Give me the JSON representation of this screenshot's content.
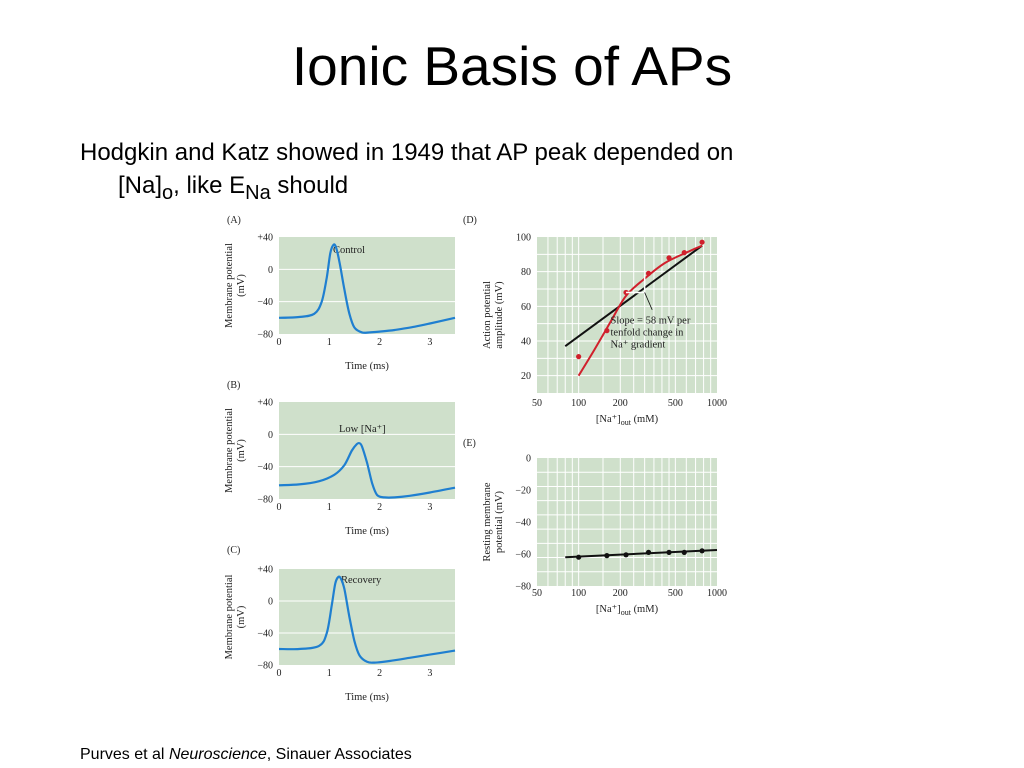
{
  "slide": {
    "title": "Ionic Basis of APs",
    "bullet": {
      "text_1": "Hodgkin and Katz showed in 1949 that AP peak depended on",
      "text_2": "[Na]",
      "sub_1": "o",
      "text_3": ", like E",
      "sub_2": "Na",
      "text_4": " should"
    },
    "citation": {
      "prefix": "Purves et al ",
      "book": "Neuroscience",
      "suffix": ", Sinauer Associates"
    }
  },
  "colors": {
    "panel_bg": "#cfe0cb",
    "grid": "#ffffff",
    "trace": "#1f7fd0",
    "fit_red": "#d0202c",
    "line_black": "#111111"
  },
  "chart_data": [
    {
      "panel": "(A)",
      "type": "line",
      "annotation": "Control",
      "xlabel": "Time (ms)",
      "ylabel_line1": "Membrane potential",
      "ylabel_line2": "(mV)",
      "xlim": [
        0,
        3.5
      ],
      "ylim": [
        -80,
        40
      ],
      "xticks": [
        0,
        1,
        2,
        3
      ],
      "yticks": [
        40,
        0,
        -40,
        -80
      ],
      "ytick_labels": [
        "+40",
        "0",
        "−40",
        "−80"
      ],
      "grid": true,
      "series": [
        {
          "x": [
            0,
            0.4,
            0.7,
            0.85,
            0.95,
            1.02,
            1.08,
            1.13,
            1.2,
            1.3,
            1.4,
            1.5,
            1.65,
            1.8,
            2.0,
            2.3,
            2.7,
            3.0,
            3.5
          ],
          "y": [
            -60,
            -59,
            -55,
            -40,
            -10,
            20,
            30,
            28,
            10,
            -25,
            -55,
            -72,
            -78,
            -78,
            -77,
            -75,
            -71,
            -67,
            -60
          ]
        }
      ]
    },
    {
      "panel": "(B)",
      "type": "line",
      "annotation": "Low [Na⁺]",
      "xlabel": "Time (ms)",
      "ylabel_line1": "Membrane potential",
      "ylabel_line2": "(mV)",
      "xlim": [
        0,
        3.5
      ],
      "ylim": [
        -80,
        40
      ],
      "xticks": [
        0,
        1,
        2,
        3
      ],
      "yticks": [
        40,
        0,
        -40,
        -80
      ],
      "ytick_labels": [
        "+40",
        "0",
        "−40",
        "−80"
      ],
      "grid": true,
      "series": [
        {
          "x": [
            0,
            0.4,
            0.8,
            1.1,
            1.3,
            1.45,
            1.55,
            1.6,
            1.65,
            1.75,
            1.85,
            1.95,
            2.1,
            2.3,
            2.6,
            3.0,
            3.5
          ],
          "y": [
            -63,
            -62,
            -58,
            -50,
            -38,
            -20,
            -12,
            -11,
            -15,
            -35,
            -60,
            -75,
            -78,
            -78,
            -76,
            -72,
            -66
          ]
        }
      ]
    },
    {
      "panel": "(C)",
      "type": "line",
      "annotation": "Recovery",
      "xlabel": "Time (ms)",
      "ylabel_line1": "Membrane potential",
      "ylabel_line2": "(mV)",
      "xlim": [
        0,
        3.5
      ],
      "ylim": [
        -80,
        40
      ],
      "xticks": [
        0,
        1,
        2,
        3
      ],
      "yticks": [
        40,
        0,
        -40,
        -80
      ],
      "ytick_labels": [
        "+40",
        "0",
        "−40",
        "−80"
      ],
      "grid": true,
      "series": [
        {
          "x": [
            0,
            0.4,
            0.8,
            0.95,
            1.05,
            1.12,
            1.18,
            1.23,
            1.3,
            1.4,
            1.5,
            1.6,
            1.75,
            1.9,
            2.2,
            2.6,
            3.0,
            3.5
          ],
          "y": [
            -60,
            -60,
            -56,
            -40,
            -5,
            22,
            30,
            28,
            15,
            -20,
            -50,
            -68,
            -76,
            -77,
            -75,
            -71,
            -67,
            -62
          ]
        }
      ]
    },
    {
      "panel": "(D)",
      "type": "scatter",
      "xscale": "log",
      "xlim": [
        50,
        1000
      ],
      "ylim": [
        10,
        100
      ],
      "xticks": [
        50,
        100,
        200,
        500,
        1000
      ],
      "yticks": [
        20,
        40,
        60,
        80,
        100
      ],
      "xlabel": "[Na⁺]",
      "xlabel_sub": "out",
      "xlabel_unit": " (mM)",
      "ylabel_line1": "Action potential",
      "ylabel_line2": "amplitude (mV)",
      "grid": true,
      "annotation_lines": [
        "Slope = 58 mV per",
        "tenfold change in",
        "Na⁺ gradient"
      ],
      "points": {
        "x": [
          100,
          160,
          220,
          320,
          450,
          580,
          780
        ],
        "y": [
          31,
          46,
          68,
          79,
          88,
          91,
          97
        ]
      },
      "series": [
        {
          "kind": "line",
          "x": [
            80,
            780
          ],
          "y": [
            37,
            95
          ]
        },
        {
          "kind": "curve",
          "x": [
            100,
            130,
            170,
            220,
            300,
            420,
            600,
            780
          ],
          "y": [
            20,
            35,
            51,
            66,
            76,
            85,
            91,
            95
          ]
        }
      ]
    },
    {
      "panel": "(E)",
      "type": "scatter",
      "xscale": "log",
      "xlim": [
        50,
        1000
      ],
      "ylim": [
        -80,
        0
      ],
      "xticks": [
        50,
        100,
        200,
        500,
        1000
      ],
      "yticks": [
        0,
        -20,
        -40,
        -60,
        -80
      ],
      "ytick_labels": [
        "0",
        "−20",
        "−40",
        "−60",
        "−80"
      ],
      "xlabel": "[Na⁺]",
      "xlabel_sub": "out",
      "xlabel_unit": " (mM)",
      "ylabel_line1": "Resting membrane",
      "ylabel_line2": "potential (mV)",
      "grid": true,
      "points": {
        "x": [
          100,
          160,
          220,
          320,
          450,
          580,
          780
        ],
        "y": [
          -62,
          -61,
          -60.5,
          -59,
          -59,
          -59,
          -58
        ]
      },
      "series": [
        {
          "kind": "line",
          "x": [
            80,
            1000
          ],
          "y": [
            -62,
            -57.5
          ]
        }
      ]
    }
  ]
}
